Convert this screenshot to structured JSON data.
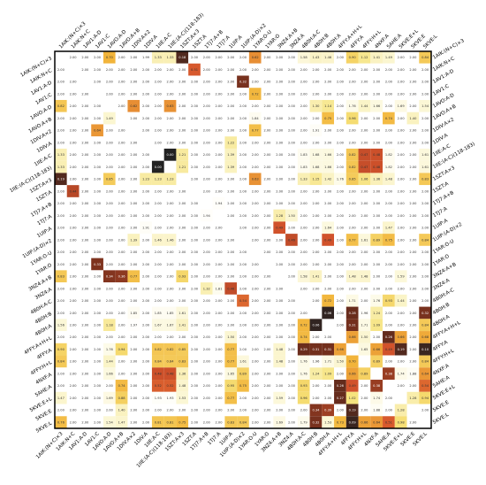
{
  "labels": [
    "1AIK:(N+C)×3",
    "1AIK:N+C",
    "1AV1:A-D",
    "1AV1:C",
    "1AVO:A-D",
    "1AVO:A+B",
    "1DIV:A×2",
    "1DIV:A",
    "1IIE:A-C",
    "1IIE:(A-C)(118-183)",
    "1SZT:A×3",
    "1SZT:A",
    "1TJ7:A+B",
    "1TJ7:A",
    "1UIP:A",
    "1UIP:(A-D)×2",
    "1YAR:O-U",
    "1YAR:O",
    "3NZ4:A+B",
    "3NZ4:A",
    "4B0H:A-C",
    "4B0H:B",
    "4B0H:A",
    "4FFY:A+H+L",
    "4FFY:A",
    "4FFY:H+L",
    "4NXF:A",
    "5AHE:A",
    "5KVE:E+L",
    "5KVE:E",
    "5KVE:L"
  ],
  "matrix": {
    "rows": [
      [
        null,
        "2.00",
        "2.00",
        "2.00",
        "0.70",
        "2.00",
        "2.00",
        "1.99",
        "1.33",
        "1.33",
        "0.18",
        "2.00",
        "2.00",
        "2.00",
        "2.00",
        "2.00",
        "0.62",
        "2.00",
        "2.00",
        "2.00",
        "1.58",
        "1.43",
        "1.46",
        "2.00",
        "0.90",
        "1.12",
        "1.41",
        "1.49",
        "2.00",
        "2.00",
        "0.84"
      ],
      [
        "2.00",
        null,
        "2.00",
        "2.00",
        "2.00",
        "2.00",
        "2.00",
        "2.00",
        "2.00",
        "2.00",
        "2.00",
        "0.51",
        "2.00",
        "2.00",
        "2.00",
        "2.00",
        "2.00",
        "2.00",
        "2.00",
        "2.00",
        "2.00",
        "2.00",
        "2.00",
        "2.00",
        "2.00",
        "2.00",
        "2.00",
        "2.00",
        "2.00",
        "2.00",
        "2.00"
      ],
      [
        "2.00",
        "2.00",
        null,
        "2.00",
        "2.00",
        "2.00",
        "2.00",
        "2.00",
        "2.00",
        "2.00",
        "2.00",
        "2.00",
        "2.00",
        "2.00",
        "2.00",
        "0.32",
        "2.00",
        "2.00",
        "2.00",
        "2.00",
        "2.00",
        "2.00",
        "2.00",
        "2.00",
        "2.00",
        "2.00",
        "2.00",
        "2.00",
        "2.00",
        "2.00",
        "2.00"
      ],
      [
        "2.00",
        "2.00",
        "2.00",
        null,
        "2.00",
        "2.00",
        "2.00",
        "2.00",
        "2.00",
        "2.00",
        "2.00",
        "2.00",
        "2.00",
        "2.00",
        "2.00",
        "2.00",
        "0.72",
        "2.00",
        "2.00",
        "2.00",
        "2.00",
        "2.00",
        "2.00",
        "2.00",
        "2.00",
        "2.00",
        "2.00",
        "2.00",
        "2.00",
        "2.00",
        "2.00"
      ],
      [
        "0.82",
        "2.00",
        "2.00",
        "2.00",
        null,
        "2.00",
        "0.62",
        "2.00",
        "2.00",
        "0.63",
        "2.00",
        "2.00",
        "2.00",
        "2.00",
        "2.00",
        "2.00",
        "2.00",
        "2.00",
        "2.00",
        "2.00",
        "2.00",
        "1.30",
        "1.14",
        "2.00",
        "1.76",
        "1.44",
        "1.66",
        "2.00",
        "1.69",
        "2.00",
        "1.54"
      ],
      [
        "2.00",
        "2.00",
        "2.00",
        "2.00",
        "1.49",
        null,
        "2.00",
        "2.00",
        "2.00",
        "2.00",
        "2.00",
        "2.00",
        "2.00",
        "2.00",
        "2.00",
        "2.00",
        "1.84",
        "2.00",
        "2.00",
        "2.00",
        "2.00",
        "2.00",
        "0.75",
        "2.00",
        "0.96",
        "2.00",
        "2.00",
        "0.74",
        "2.00",
        "1.40",
        "2.00"
      ],
      [
        "2.00",
        "2.00",
        "2.00",
        "0.64",
        "2.00",
        "2.00",
        null,
        "2.00",
        "2.00",
        "2.00",
        "2.00",
        "2.00",
        "2.00",
        "2.00",
        "2.00",
        "2.00",
        "0.77",
        "2.00",
        "2.00",
        "2.00",
        "2.00",
        "1.91",
        "2.00",
        "2.00",
        "2.00",
        "2.00",
        "2.00",
        "2.00",
        "2.00",
        "2.00",
        "2.00"
      ],
      [
        "2.00",
        "2.00",
        "2.00",
        "2.00",
        "2.00",
        "2.00",
        "2.00",
        null,
        "2.00",
        "2.00",
        "2.00",
        "2.00",
        "2.00",
        "2.00",
        "1.22",
        "2.00",
        "2.00",
        "2.00",
        "2.00",
        "2.00",
        "2.00",
        "2.00",
        "2.00",
        "2.00",
        "2.00",
        "2.00",
        "2.00",
        "2.00",
        "2.00",
        "2.00",
        "2.00"
      ],
      [
        "1.33",
        "2.00",
        "2.00",
        "2.00",
        "2.00",
        "2.00",
        "2.00",
        "2.00",
        null,
        "0.00",
        "1.21",
        "2.00",
        "2.00",
        "2.00",
        "1.39",
        "2.00",
        "2.00",
        "2.00",
        "2.00",
        "2.00",
        "1.83",
        "1.68",
        "1.66",
        "2.00",
        "0.82",
        "0.47",
        "0.48",
        "1.82",
        "2.00",
        "2.00",
        "1.61"
      ],
      [
        "1.33",
        "2.00",
        "2.00",
        "2.00",
        "2.00",
        "2.00",
        "2.00",
        "2.00",
        "0.00",
        null,
        "1.21",
        "2.00",
        "2.00",
        "2.00",
        "1.39",
        "2.00",
        "2.00",
        "2.00",
        "2.00",
        "2.00",
        "1.83",
        "1.68",
        "1.66",
        "2.00",
        "0.82",
        "0.47",
        "0.48",
        "1.82",
        "2.00",
        "2.00",
        "1.61"
      ],
      [
        "0.19",
        "2.00",
        "2.00",
        "2.00",
        "0.85",
        "2.00",
        "2.00",
        "1.23",
        "1.23",
        "1.23",
        null,
        "2.00",
        "2.00",
        "2.00",
        "2.00",
        "2.00",
        "0.63",
        "2.00",
        "2.00",
        "2.00",
        "1.33",
        "1.15",
        "1.42",
        "1.76",
        "0.85",
        "1.06",
        "1.36",
        "1.48",
        "2.00",
        "2.00",
        "0.83"
      ],
      [
        "2.00",
        "0.44",
        "2.00",
        "2.00",
        "2.00",
        "2.00",
        "2.00",
        "2.00",
        "2.00",
        "2.00",
        "2.00",
        null,
        "2.00",
        "2.00",
        "2.00",
        "2.00",
        "2.00",
        "2.00",
        "2.00",
        "2.00",
        "2.00",
        "2.00",
        "2.00",
        "2.00",
        "2.00",
        "2.00",
        "2.00",
        "2.00",
        "2.00",
        "2.00",
        "2.00"
      ],
      [
        "2.00",
        "2.00",
        "2.00",
        "2.00",
        "2.00",
        "2.00",
        "2.00",
        "2.00",
        "2.00",
        "2.00",
        "2.00",
        "2.00",
        null,
        "1.94",
        "2.00",
        "2.00",
        "2.00",
        "2.00",
        "2.00",
        "2.00",
        "2.00",
        "2.00",
        "2.00",
        "2.00",
        "2.00",
        "2.00",
        "2.00",
        "2.00",
        "2.00",
        "2.00",
        "2.00"
      ],
      [
        "2.00",
        "2.00",
        "2.00",
        "2.00",
        "2.00",
        "2.00",
        "2.00",
        "2.00",
        "2.00",
        "2.00",
        "2.00",
        "2.00",
        "1.94",
        null,
        "2.00",
        "2.00",
        "2.00",
        "2.00",
        "1.28",
        "1.50",
        "2.00",
        "2.00",
        "2.00",
        "2.00",
        "2.00",
        "2.00",
        "2.00",
        "2.00",
        "2.00",
        "2.00",
        "2.00"
      ],
      [
        "2.00",
        "2.00",
        "2.00",
        "2.00",
        "2.00",
        "2.00",
        "2.00",
        "1.91",
        "2.00",
        "2.00",
        "2.00",
        "2.00",
        "2.00",
        "2.00",
        null,
        "2.00",
        "2.00",
        "2.00",
        "0.49",
        "2.00",
        "2.00",
        "2.00",
        "1.64",
        "2.00",
        "2.00",
        "2.00",
        "2.00",
        "1.47",
        "2.00",
        "2.00",
        "2.00"
      ],
      [
        "2.00",
        "2.00",
        "2.00",
        "2.00",
        "2.00",
        "2.00",
        "1.39",
        "2.00",
        "1.46",
        "1.46",
        "2.00",
        "2.00",
        "2.00",
        "2.00",
        "2.00",
        null,
        "2.00",
        "2.00",
        "2.00",
        "0.46",
        "2.00",
        "2.00",
        "0.49",
        "2.00",
        "0.77",
        "1.61",
        "0.89",
        "0.75",
        "2.00",
        "2.00",
        "0.84"
      ],
      [
        "2.00",
        "2.00",
        "2.00",
        "2.00",
        "2.00",
        "2.00",
        "2.00",
        "2.00",
        "2.00",
        "2.00",
        "2.00",
        "2.00",
        "2.00",
        "2.00",
        "2.00",
        "2.00",
        null,
        "2.00",
        "2.00",
        "2.00",
        "2.00",
        "2.00",
        "2.00",
        "2.00",
        "2.00",
        "2.00",
        "2.00",
        "2.00",
        "2.00",
        "2.00",
        "2.00"
      ],
      [
        "2.00",
        "2.00",
        "2.00",
        "0.33",
        "2.00",
        "2.00",
        "2.00",
        "2.00",
        "2.00",
        "2.00",
        "2.00",
        "2.00",
        "2.00",
        "2.00",
        "2.00",
        "2.00",
        "2.00",
        null,
        "2.00",
        "2.00",
        "2.00",
        "2.00",
        "2.00",
        "2.00",
        "2.00",
        "2.00",
        "2.00",
        "2.00",
        "2.00",
        "2.00",
        "2.00"
      ],
      [
        "0.83",
        "2.00",
        "2.00",
        "2.00",
        "0.34",
        "0.36",
        "0.77",
        "2.00",
        "2.00",
        "2.00",
        "0.93",
        "2.00",
        "2.00",
        "2.00",
        "2.00",
        "2.00",
        "2.00",
        "2.00",
        null,
        "2.00",
        "1.58",
        "1.41",
        "2.00",
        "2.00",
        "1.48",
        "1.48",
        "2.00",
        "2.00",
        "1.59",
        "2.00",
        "2.00"
      ],
      [
        "2.00",
        "2.00",
        "2.00",
        "2.00",
        "2.00",
        "2.00",
        "2.00",
        "2.00",
        "2.00",
        "2.00",
        "2.00",
        "2.00",
        "1.32",
        "1.81",
        "0.46",
        "2.00",
        "2.00",
        "2.00",
        "2.00",
        null,
        "2.00",
        "2.00",
        "2.00",
        "2.00",
        "2.00",
        "2.00",
        "2.00",
        "2.00",
        "2.00",
        "2.00",
        "2.00"
      ],
      [
        "2.00",
        "2.00",
        "2.00",
        "2.00",
        "2.00",
        "2.00",
        "2.00",
        "2.00",
        "2.00",
        "2.00",
        "2.00",
        "2.00",
        "2.00",
        "2.00",
        "2.00",
        "0.54",
        "2.00",
        "2.00",
        "2.00",
        "2.00",
        null,
        "2.00",
        "0.72",
        "2.00",
        "1.71",
        "2.00",
        "1.76",
        "0.93",
        "1.44",
        "2.00",
        "2.00"
      ],
      [
        "2.00",
        "2.00",
        "2.00",
        "2.00",
        "2.00",
        "2.00",
        "1.85",
        "2.00",
        "1.85",
        "1.85",
        "1.61",
        "2.00",
        "2.00",
        "2.00",
        "2.00",
        "2.00",
        "2.00",
        "2.00",
        "2.00",
        "2.00",
        "2.00",
        null,
        "0.06",
        "2.00",
        "0.28",
        "1.96",
        "1.24",
        "2.00",
        "2.00",
        "2.00",
        "0.32"
      ],
      [
        "1.56",
        "2.00",
        "2.00",
        "2.00",
        "1.18",
        "2.00",
        "1.97",
        "2.00",
        "1.67",
        "1.67",
        "1.41",
        "2.00",
        "2.00",
        "2.00",
        "2.00",
        "2.00",
        "2.00",
        "2.00",
        "2.00",
        "2.00",
        "0.72",
        "0.06",
        null,
        "2.00",
        "0.31",
        "1.71",
        "1.09",
        "2.00",
        "2.00",
        "2.00",
        "0.84"
      ],
      [
        "2.00",
        "2.00",
        "2.00",
        "2.00",
        "2.00",
        "2.00",
        "2.00",
        "2.00",
        "2.00",
        "2.00",
        "2.00",
        "2.00",
        "2.00",
        "2.00",
        "1.50",
        "2.00",
        "2.00",
        "2.00",
        "2.00",
        "2.00",
        "0.74",
        "2.00",
        "2.00",
        null,
        "0.66",
        "1.50",
        "2.00",
        "0.26",
        "0.66",
        "2.00",
        "0.68"
      ],
      [
        "0.90",
        "2.00",
        "2.00",
        "2.00",
        "1.76",
        "0.94",
        "2.00",
        "2.00",
        "0.82",
        "0.82",
        "0.85",
        "2.00",
        "2.00",
        "2.00",
        "0.77",
        "2.00",
        "2.00",
        "2.00",
        "1.48",
        "2.00",
        "0.29",
        "0.31",
        "0.31",
        "0.66",
        null,
        "1.65",
        "0.66",
        "0.49",
        "0.19",
        "2.00",
        "0.10"
      ],
      [
        "0.84",
        "2.00",
        "2.00",
        "2.00",
        "1.44",
        "2.00",
        "2.00",
        "2.00",
        "0.84",
        "0.84",
        "0.83",
        "2.00",
        "2.00",
        "2.00",
        "0.77",
        "1.61",
        "2.00",
        "2.00",
        "1.48",
        "2.00",
        "1.76",
        "1.96",
        "1.71",
        "1.50",
        "0.70",
        null,
        "0.89",
        "2.00",
        "2.00",
        "2.00",
        "0.84"
      ],
      [
        "2.00",
        "2.00",
        "2.00",
        "2.00",
        "1.66",
        "2.00",
        "2.00",
        "2.00",
        "0.48",
        "0.48",
        "1.36",
        "2.00",
        "2.00",
        "2.00",
        "1.65",
        "0.89",
        "2.00",
        "2.00",
        "2.00",
        "2.00",
        "1.76",
        "1.24",
        "1.09",
        "2.00",
        "0.66",
        "0.89",
        null,
        "0.38",
        "1.74",
        "1.88",
        "0.64"
      ],
      [
        "2.00",
        "2.00",
        "2.00",
        "2.00",
        "2.00",
        "0.74",
        "2.00",
        "2.00",
        "0.52",
        "0.52",
        "1.48",
        "2.00",
        "2.00",
        "2.00",
        "0.95",
        "0.75",
        "2.00",
        "2.00",
        "2.00",
        "2.00",
        "0.93",
        "2.00",
        "2.00",
        "0.26",
        "0.49",
        "2.00",
        "0.38",
        null,
        "2.00",
        "2.00",
        "0.54"
      ],
      [
        "1.47",
        "2.00",
        "2.00",
        "2.00",
        "1.69",
        "0.88",
        "2.00",
        "2.00",
        "1.93",
        "1.93",
        "1.53",
        "2.00",
        "2.00",
        "2.00",
        "0.77",
        "2.00",
        "2.00",
        "2.00",
        "1.59",
        "2.00",
        "0.96",
        "2.00",
        "2.00",
        "0.27",
        "1.02",
        "2.00",
        "1.74",
        "2.00",
        null,
        "1.28",
        "0.94"
      ],
      [
        "2.00",
        "2.00",
        "2.00",
        "2.00",
        "2.00",
        "1.40",
        "2.00",
        "2.00",
        "2.00",
        "2.00",
        "2.00",
        "2.00",
        "2.00",
        "2.00",
        "2.00",
        "2.00",
        "2.00",
        "2.00",
        "2.00",
        "2.00",
        "2.00",
        "0.34",
        "0.39",
        "2.00",
        "0.19",
        "2.00",
        "1.88",
        "2.00",
        "1.28",
        null,
        "2.00"
      ],
      [
        "0.76",
        "2.00",
        "2.00",
        "2.00",
        "1.54",
        "1.47",
        "2.00",
        "2.00",
        "0.81",
        "0.81",
        "0.75",
        "2.00",
        "2.00",
        "2.00",
        "0.83",
        "0.84",
        "2.00",
        "2.00",
        "1.69",
        "2.00",
        "1.79",
        "0.32",
        "1.53",
        "0.73",
        "0.09",
        "0.66",
        "0.64",
        "0.51",
        "0.98",
        "2.00",
        null
      ]
    ]
  }
}
